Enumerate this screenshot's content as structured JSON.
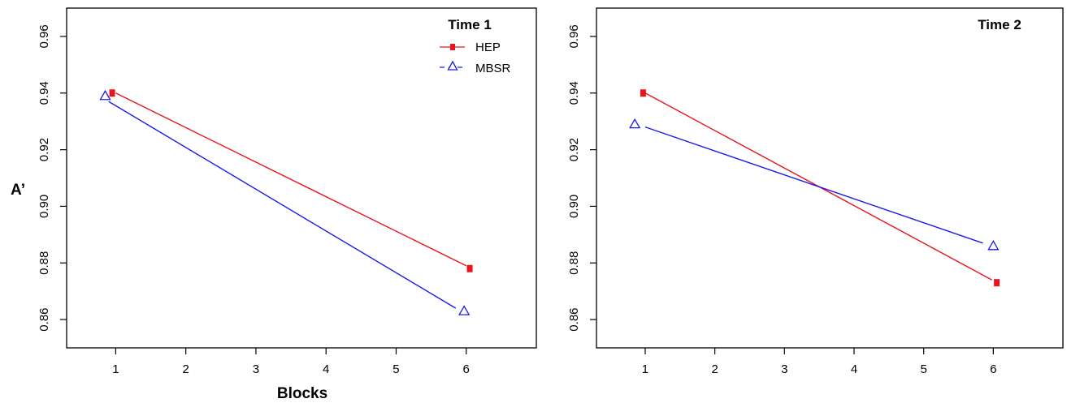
{
  "chart_data": [
    {
      "type": "line",
      "title": "Time 1",
      "xlabel": "Blocks",
      "ylabel": "A’",
      "x_ticks": [
        "1",
        "2",
        "3",
        "4",
        "5",
        "6"
      ],
      "y_ticks": [
        "0.86",
        "0.88",
        "0.90",
        "0.92",
        "0.94",
        "0.96"
      ],
      "xlim": [
        0.3,
        7.0
      ],
      "ylim": [
        0.85,
        0.97
      ],
      "legend": {
        "position": "top-right",
        "entries": [
          {
            "name": "HEP",
            "color": "#e8141b",
            "marker": "square",
            "line": "solid"
          },
          {
            "name": "MBSR",
            "color": "#1a1aee",
            "marker": "triangle",
            "line": "dashed"
          }
        ]
      },
      "series": [
        {
          "name": "HEP",
          "color": "#e8141b",
          "marker": "square",
          "points": [
            {
              "x": 0.95,
              "y": 0.94
            },
            {
              "x": 6.05,
              "y": 0.878
            }
          ],
          "line": [
            {
              "x": 1,
              "y": 0.94
            },
            {
              "x": 6,
              "y": 0.879
            }
          ]
        },
        {
          "name": "MBSR",
          "color": "#1a1aee",
          "marker": "triangle",
          "points": [
            {
              "x": 0.85,
              "y": 0.939
            },
            {
              "x": 5.97,
              "y": 0.863
            }
          ],
          "line": [
            {
              "x": 0.9,
              "y": 0.937
            },
            {
              "x": 5.85,
              "y": 0.864
            }
          ]
        }
      ]
    },
    {
      "type": "line",
      "title": "Time 2",
      "xlabel": "",
      "ylabel": "",
      "x_ticks": [
        "1",
        "2",
        "3",
        "4",
        "5",
        "6"
      ],
      "y_ticks": [
        "0.86",
        "0.88",
        "0.90",
        "0.92",
        "0.94",
        "0.96"
      ],
      "xlim": [
        0.3,
        7.0
      ],
      "ylim": [
        0.85,
        0.97
      ],
      "series": [
        {
          "name": "HEP",
          "color": "#e8141b",
          "marker": "square",
          "points": [
            {
              "x": 0.97,
              "y": 0.94
            },
            {
              "x": 6.05,
              "y": 0.873
            }
          ],
          "line": [
            {
              "x": 1,
              "y": 0.94
            },
            {
              "x": 5.98,
              "y": 0.874
            }
          ]
        },
        {
          "name": "MBSR",
          "color": "#1a1aee",
          "marker": "triangle",
          "points": [
            {
              "x": 0.85,
              "y": 0.929
            },
            {
              "x": 6.0,
              "y": 0.886
            }
          ],
          "line": [
            {
              "x": 1,
              "y": 0.928
            },
            {
              "x": 5.85,
              "y": 0.887
            }
          ]
        }
      ]
    }
  ]
}
